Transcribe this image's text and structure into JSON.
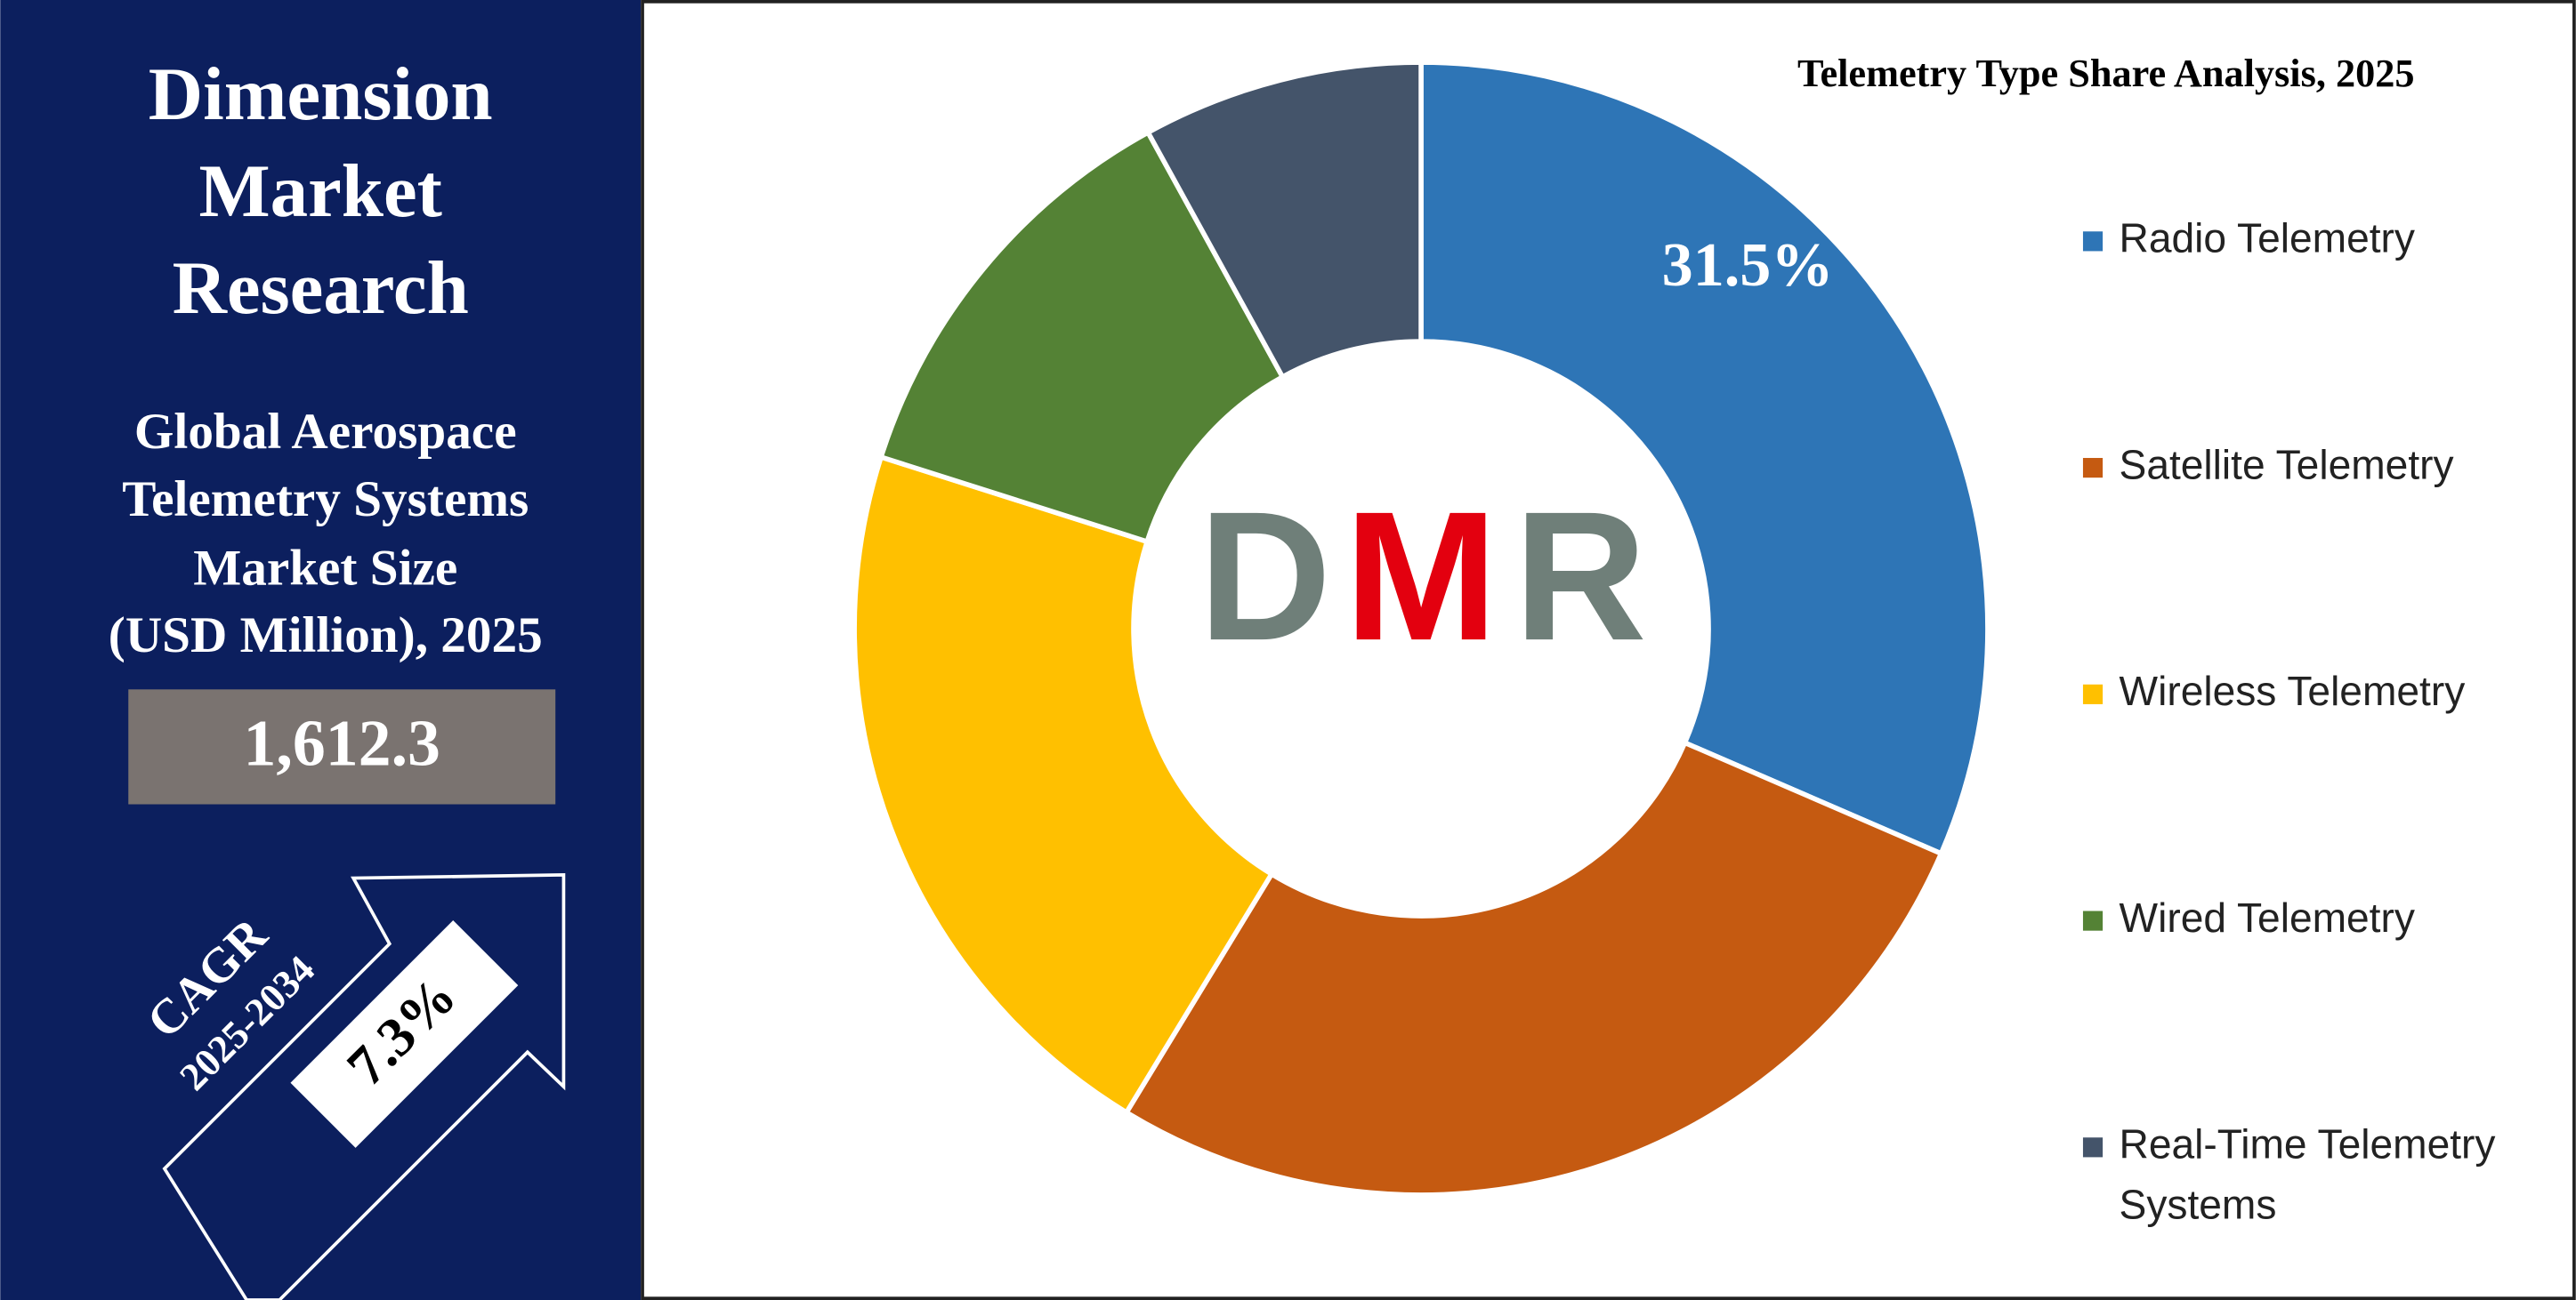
{
  "panel": {
    "brand": [
      "Dimension",
      "Market",
      "Research"
    ],
    "subtitle": [
      "Global Aerospace",
      "Telemetry Systems",
      "Market Size",
      "(USD Million), 2025"
    ],
    "market_size": "1,612.3",
    "cagr_label": "CAGR",
    "cagr_period": "2025-2034",
    "cagr": "7.3%"
  },
  "logo": [
    "D",
    "M",
    "R"
  ],
  "chart_data": {
    "type": "donut",
    "title": "Telemetry Type Share Analysis, 2025",
    "categories": [
      "Radio Telemetry",
      "Satellite Telemetry",
      "Wireless Telemetry",
      "Wired Telemetry",
      "Real-Time Telemetry Systems"
    ],
    "values": [
      31.5,
      27.2,
      21.2,
      12.1,
      8.0
    ],
    "value_labels": [
      "31.5%",
      null,
      null,
      null,
      null
    ],
    "colors": [
      "#2e75b6",
      "#c55a11",
      "#ffc000",
      "#548235",
      "#44546a"
    ],
    "legend": "right"
  }
}
